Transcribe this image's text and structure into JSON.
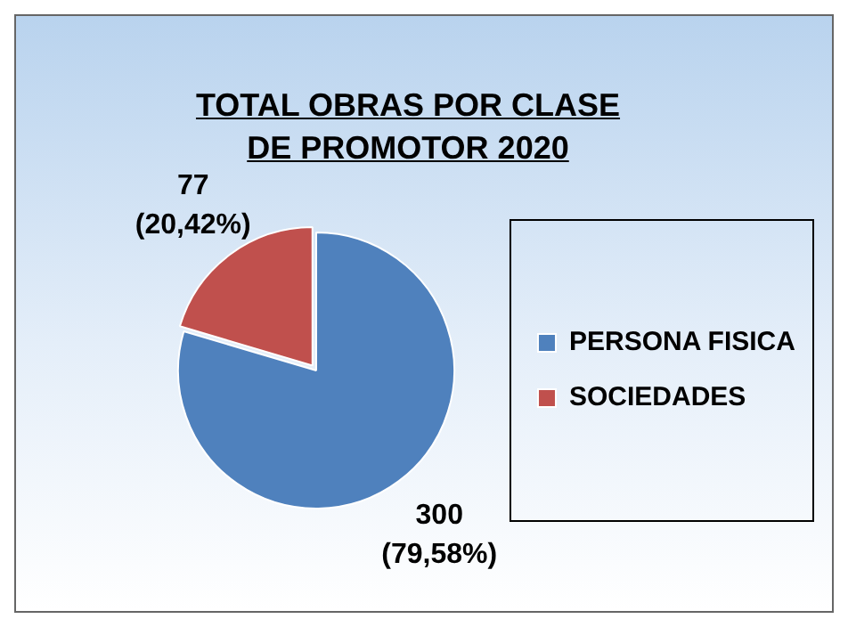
{
  "chart_data": {
    "type": "pie",
    "title": "TOTAL OBRAS POR CLASE DE PROMOTOR 2020",
    "categories": [
      "PERSONA FISICA",
      "SOCIEDADES"
    ],
    "values": [
      300,
      77
    ],
    "colors": [
      "#4f81bd",
      "#c0504d"
    ],
    "value_labels": [
      "300\n(79,58%)",
      "77\n(20,42%)"
    ],
    "legend": "right"
  }
}
